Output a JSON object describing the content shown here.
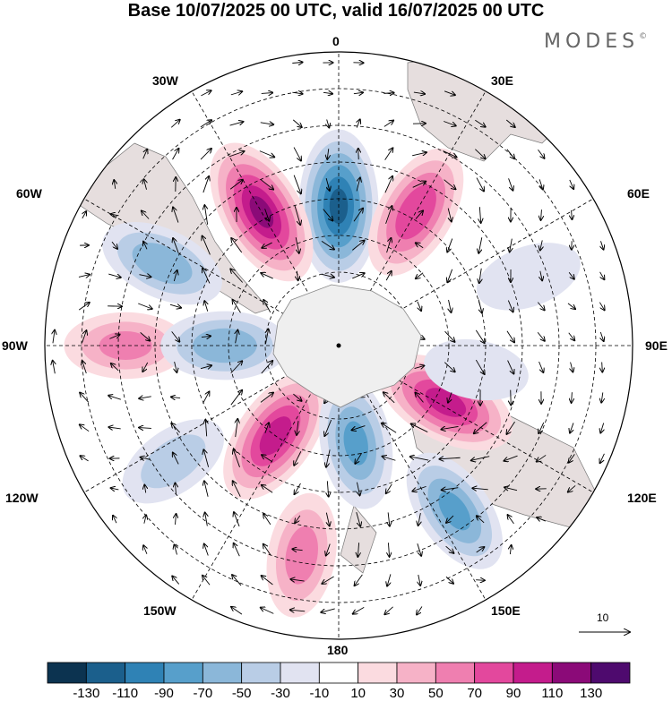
{
  "header": {
    "title": "Base 10/07/2025 00 UTC, valid 16/07/2025 00 UTC",
    "brand": "MODES",
    "brand_mark": "©"
  },
  "map": {
    "projection": "south-polar-stereographic",
    "longitude_labels": {
      "top": "0",
      "upper_left": "30W",
      "upper_right": "30E",
      "left_upper": "60W",
      "right_upper": "60E",
      "left": "90W",
      "right": "90E",
      "left_lower": "120W",
      "right_lower": "120E",
      "lower_left": "150W",
      "lower_right": "150E",
      "bottom": "180"
    },
    "reference_vector": {
      "value": "10",
      "icon": "arrow-right-icon"
    },
    "anomaly_centers": [
      {
        "lon": 0,
        "colat": 38,
        "value": -120
      },
      {
        "lon": 30,
        "colat": 42,
        "value": 95
      },
      {
        "lon": -30,
        "colat": 42,
        "value": 120
      },
      {
        "lon": -65,
        "colat": 53,
        "value": -70
      },
      {
        "lon": -90,
        "colat": 58,
        "value": 60
      },
      {
        "lon": -90,
        "colat": 31,
        "value": -70
      },
      {
        "lon": -145,
        "colat": 30,
        "value": 105
      },
      {
        "lon": 170,
        "colat": 27,
        "value": -80
      },
      {
        "lon": 118,
        "colat": 33,
        "value": 105
      },
      {
        "lon": 145,
        "colat": 55,
        "value": -80
      },
      {
        "lon": -170,
        "colat": 58,
        "value": 65
      },
      {
        "lon": -125,
        "colat": 55,
        "value": -45
      },
      {
        "lon": 70,
        "colat": 55,
        "value": -30
      },
      {
        "lon": 100,
        "colat": 38,
        "value": -25
      }
    ]
  },
  "colorbar": {
    "ticks": [
      "-130",
      "-110",
      "-90",
      "-70",
      "-50",
      "-30",
      "-10",
      "10",
      "30",
      "50",
      "70",
      "90",
      "110",
      "130"
    ],
    "colors": [
      "#0c3350",
      "#1b5f8c",
      "#2f82b5",
      "#579fcb",
      "#8bb7d9",
      "#b9cde6",
      "#e1e3f1",
      "#ffffff",
      "#fbdbe0",
      "#f6b2c7",
      "#ef7fb0",
      "#e3489d",
      "#c41c8c",
      "#8b0a78",
      "#4e0a6e"
    ]
  }
}
